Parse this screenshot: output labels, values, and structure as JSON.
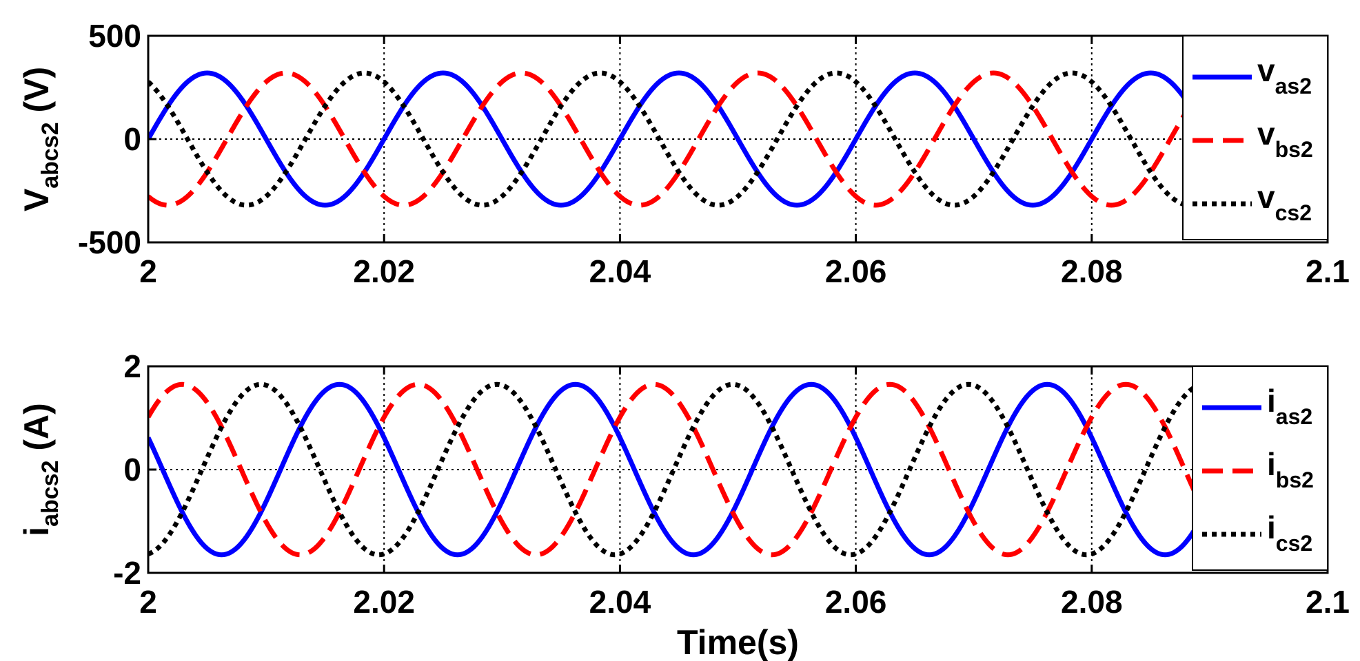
{
  "chart_data": [
    {
      "type": "line",
      "ylabel": {
        "main": "V",
        "sub": "abcs2",
        "unit": " (V)"
      },
      "xlabel": "",
      "xlim": [
        2,
        2.1
      ],
      "ylim": [
        -500,
        500
      ],
      "xticks": [
        "2",
        "2.02",
        "2.04",
        "2.06",
        "2.08",
        "2.1"
      ],
      "xtick_values": [
        2,
        2.02,
        2.04,
        2.06,
        2.08,
        2.1
      ],
      "yticks": [
        "-500",
        "0",
        "500"
      ],
      "ytick_values": [
        -500,
        0,
        500
      ],
      "grid": true,
      "legend_position": "right",
      "series": [
        {
          "name": "v",
          "sub": "as2",
          "amplitude": 320,
          "frequency_hz": 50,
          "phase_deg": 0,
          "color": "#0000ff",
          "style": "solid"
        },
        {
          "name": "v",
          "sub": "bs2",
          "amplitude": 320,
          "frequency_hz": 50,
          "phase_deg": -120,
          "color": "#ff0000",
          "style": "dashed"
        },
        {
          "name": "v",
          "sub": "cs2",
          "amplitude": 320,
          "frequency_hz": 50,
          "phase_deg": 120,
          "color": "#000000",
          "style": "dotted"
        }
      ]
    },
    {
      "type": "line",
      "ylabel": {
        "main": "i",
        "sub": "abcs2",
        "unit": " (A)"
      },
      "xlabel": "Time(s)",
      "xlim": [
        2,
        2.1
      ],
      "ylim": [
        -2,
        2
      ],
      "xticks": [
        "2",
        "2.02",
        "2.04",
        "2.06",
        "2.08",
        "2.1"
      ],
      "xtick_values": [
        2,
        2.02,
        2.04,
        2.06,
        2.08,
        2.1
      ],
      "yticks": [
        "-2",
        "0",
        "2"
      ],
      "ytick_values": [
        -2,
        0,
        2
      ],
      "grid": true,
      "legend_position": "right",
      "series": [
        {
          "name": "i",
          "sub": "as2",
          "amplitude": 1.65,
          "frequency_hz": 50,
          "phase_deg": 158,
          "color": "#0000ff",
          "style": "solid"
        },
        {
          "name": "i",
          "sub": "bs2",
          "amplitude": 1.65,
          "frequency_hz": 50,
          "phase_deg": 38,
          "color": "#ff0000",
          "style": "dashed"
        },
        {
          "name": "i",
          "sub": "cs2",
          "amplitude": 1.65,
          "frequency_hz": 50,
          "phase_deg": -82,
          "color": "#000000",
          "style": "dotted"
        }
      ]
    }
  ]
}
